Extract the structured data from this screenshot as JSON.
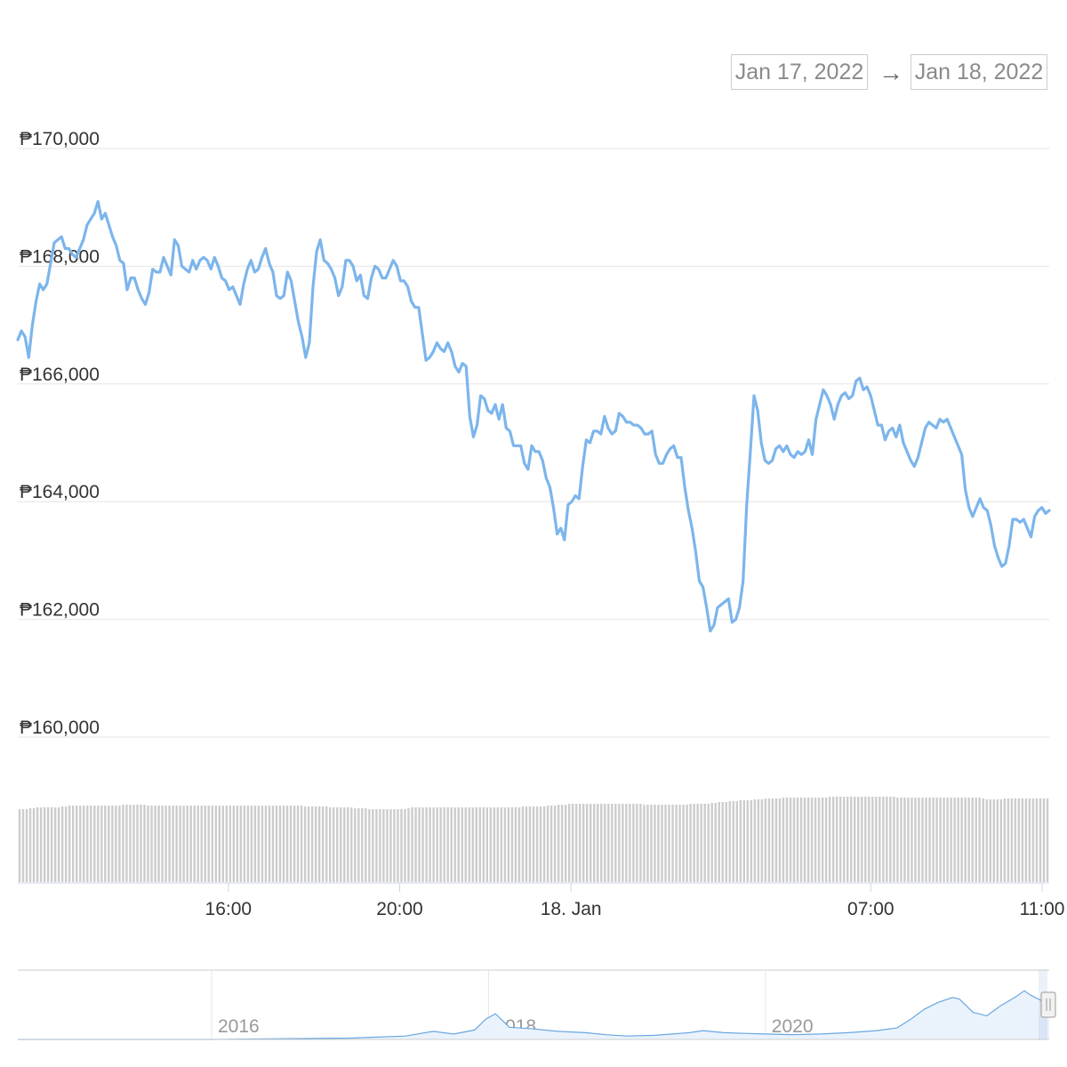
{
  "range_selector": {
    "from": "Jan 17, 2022",
    "arrow": "→",
    "to": "Jan 18, 2022"
  },
  "colors": {
    "price_line": "#7cb5ec",
    "grid": "#e6e6e6",
    "volume_bar": "#cccccc",
    "axis_label": "#333333",
    "navigator_line": "#6aa6e0",
    "navigator_fill": "#eaf3fc"
  },
  "chart_data": [
    {
      "type": "line",
      "name": "price",
      "title": "",
      "currency_symbol": "₱",
      "y_ticks": [
        "₱170,000",
        "₱168,000",
        "₱166,000",
        "₱164,000",
        "₱162,000",
        "₱160,000"
      ],
      "ylim": [
        160000,
        170000
      ],
      "x_ticks": [
        "16:00",
        "20:00",
        "18. Jan",
        "07:00",
        "11:00"
      ],
      "grid": true,
      "x_time_range": [
        "2022-01-17 11:05",
        "2022-01-18 11:10"
      ],
      "series": [
        {
          "values": [
            166750,
            166900,
            166800,
            166450,
            167000,
            167400,
            167700,
            167600,
            167700,
            168050,
            168400,
            168450,
            168500,
            168300,
            168300,
            168200,
            168150,
            168300,
            168450,
            168700,
            168800,
            168900,
            169100,
            168800,
            168900,
            168700,
            168500,
            168350,
            168100,
            168050,
            167600,
            167800,
            167800,
            167600,
            167450,
            167350,
            167550,
            167950,
            167900,
            167900,
            168150,
            168000,
            167850,
            168450,
            168350,
            168000,
            167950,
            167900,
            168100,
            167950,
            168100,
            168150,
            168100,
            167950,
            168150,
            168000,
            167800,
            167750,
            167600,
            167650,
            167500,
            167350,
            167700,
            167950,
            168100,
            167900,
            167950,
            168150,
            168300,
            168050,
            167900,
            167500,
            167450,
            167500,
            167900,
            167750,
            167400,
            167050,
            166800,
            166450,
            166700,
            167650,
            168250,
            168450,
            168100,
            168050,
            167950,
            167800,
            167500,
            167650,
            168100,
            168100,
            168000,
            167750,
            167850,
            167500,
            167450,
            167800,
            168000,
            167950,
            167800,
            167800,
            167950,
            168100,
            168000,
            167750,
            167750,
            167650,
            167400,
            167300,
            167300,
            166850,
            166400,
            166450,
            166550,
            166700,
            166600,
            166550,
            166700,
            166550,
            166300,
            166200,
            166350,
            166300,
            165450,
            165100,
            165300,
            165800,
            165750,
            165550,
            165500,
            165650,
            165400,
            165650,
            165250,
            165200,
            164950,
            164950,
            164950,
            164650,
            164550,
            164950,
            164850,
            164850,
            164700,
            164400,
            164250,
            163900,
            163450,
            163550,
            163350,
            163950,
            164000,
            164100,
            164050,
            164600,
            165050,
            165000,
            165200,
            165200,
            165150,
            165450,
            165250,
            165150,
            165200,
            165500,
            165450,
            165350,
            165350,
            165300,
            165300,
            165250,
            165150,
            165150,
            165200,
            164800,
            164650,
            164650,
            164800,
            164900,
            164950,
            164750,
            164750,
            164250,
            163850,
            163550,
            163150,
            162650,
            162550,
            162200,
            161800,
            161900,
            162200,
            162250,
            162300,
            162350,
            161950,
            162000,
            162200,
            162650,
            163950,
            164850,
            165800,
            165550,
            165000,
            164700,
            164650,
            164700,
            164900,
            164950,
            164850,
            164950,
            164800,
            164750,
            164850,
            164800,
            164850,
            165050,
            164800,
            165400,
            165650,
            165900,
            165800,
            165650,
            165400,
            165650,
            165800,
            165850,
            165750,
            165800,
            166050,
            166100,
            165900,
            165950,
            165800,
            165550,
            165300,
            165300,
            165050,
            165200,
            165250,
            165100,
            165300,
            165000,
            164850,
            164700,
            164600,
            164750,
            165000,
            165250,
            165350,
            165300,
            165250,
            165400,
            165350,
            165400,
            165250,
            165100,
            164950,
            164800,
            164200,
            163900,
            163750,
            163900,
            164050,
            163900,
            163850,
            163600,
            163250,
            163050,
            162900,
            162950,
            163250,
            163700,
            163700,
            163650,
            163700,
            163550,
            163400,
            163750,
            163850,
            163900,
            163800,
            163850
          ]
        }
      ]
    },
    {
      "type": "bar",
      "name": "volume",
      "description_units": "relative",
      "values_relative": [
        0.82,
        0.82,
        0.82,
        0.83,
        0.83,
        0.84,
        0.84,
        0.84,
        0.84,
        0.84,
        0.84,
        0.84,
        0.85,
        0.85,
        0.86,
        0.86,
        0.86,
        0.86,
        0.86,
        0.86,
        0.86,
        0.86,
        0.86,
        0.86,
        0.86,
        0.86,
        0.86,
        0.86,
        0.86,
        0.87,
        0.87,
        0.87,
        0.87,
        0.87,
        0.87,
        0.87,
        0.86,
        0.86,
        0.86,
        0.86,
        0.86,
        0.86,
        0.86,
        0.86,
        0.86,
        0.86,
        0.86,
        0.86,
        0.86,
        0.86,
        0.86,
        0.86,
        0.86,
        0.86,
        0.86,
        0.86,
        0.86,
        0.86,
        0.86,
        0.86,
        0.86,
        0.86,
        0.86,
        0.86,
        0.86,
        0.86,
        0.86,
        0.86,
        0.86,
        0.86,
        0.86,
        0.86,
        0.86,
        0.86,
        0.86,
        0.86,
        0.86,
        0.86,
        0.86,
        0.86,
        0.85,
        0.85,
        0.85,
        0.85,
        0.85,
        0.85,
        0.85,
        0.84,
        0.84,
        0.84,
        0.84,
        0.84,
        0.84,
        0.84,
        0.83,
        0.83,
        0.83,
        0.83,
        0.82,
        0.82,
        0.82,
        0.82,
        0.82,
        0.82,
        0.82,
        0.82,
        0.82,
        0.82,
        0.82,
        0.83,
        0.84,
        0.84,
        0.84,
        0.84,
        0.84,
        0.84,
        0.84,
        0.84,
        0.84,
        0.84,
        0.84,
        0.84,
        0.84,
        0.84,
        0.84,
        0.84,
        0.84,
        0.84,
        0.84,
        0.84,
        0.84,
        0.84,
        0.84,
        0.84,
        0.84,
        0.84,
        0.84,
        0.84,
        0.84,
        0.84,
        0.84,
        0.85,
        0.85,
        0.85,
        0.85,
        0.85,
        0.85,
        0.85,
        0.86,
        0.86,
        0.86,
        0.87,
        0.87,
        0.87,
        0.88,
        0.88,
        0.88,
        0.88,
        0.88,
        0.88,
        0.88,
        0.88,
        0.88,
        0.88,
        0.88,
        0.88,
        0.88,
        0.88,
        0.88,
        0.88,
        0.88,
        0.88,
        0.88,
        0.88,
        0.88,
        0.87,
        0.87,
        0.87,
        0.87,
        0.87,
        0.87,
        0.87,
        0.87,
        0.87,
        0.87,
        0.87,
        0.87,
        0.87,
        0.88,
        0.88,
        0.88,
        0.88,
        0.88,
        0.88,
        0.89,
        0.89,
        0.9,
        0.9,
        0.9,
        0.91,
        0.91,
        0.91,
        0.92,
        0.92,
        0.92,
        0.92,
        0.93,
        0.93,
        0.93,
        0.94,
        0.94,
        0.94,
        0.94,
        0.94,
        0.95,
        0.95,
        0.95,
        0.95,
        0.95,
        0.95,
        0.95,
        0.95,
        0.95,
        0.95,
        0.95,
        0.95,
        0.95,
        0.96,
        0.96,
        0.96,
        0.96,
        0.96,
        0.96,
        0.96,
        0.96,
        0.96,
        0.96,
        0.96,
        0.96,
        0.96,
        0.96,
        0.96,
        0.96,
        0.96,
        0.96,
        0.96,
        0.95,
        0.95,
        0.95,
        0.95,
        0.95,
        0.95,
        0.95,
        0.95,
        0.95,
        0.95,
        0.95,
        0.95,
        0.95,
        0.95,
        0.95,
        0.95,
        0.95,
        0.95,
        0.95,
        0.95,
        0.95,
        0.95,
        0.95,
        0.95,
        0.94,
        0.93,
        0.93,
        0.93,
        0.93,
        0.93,
        0.94,
        0.94,
        0.94,
        0.94,
        0.94,
        0.94,
        0.94,
        0.94,
        0.94,
        0.94,
        0.94,
        0.94,
        0.94
      ]
    },
    {
      "type": "area",
      "name": "navigator",
      "x_ticks": [
        "2016",
        "2018",
        "2020"
      ],
      "x_range_years": [
        2014.6,
        2022.05
      ],
      "ylim_relative": [
        0,
        1
      ],
      "series": [
        {
          "points_relative": [
            [
              2014.6,
              0.0
            ],
            [
              2015.0,
              0.0
            ],
            [
              2015.5,
              0.0
            ],
            [
              2016.0,
              0.0
            ],
            [
              2016.5,
              0.01
            ],
            [
              2017.0,
              0.02
            ],
            [
              2017.4,
              0.05
            ],
            [
              2017.6,
              0.12
            ],
            [
              2017.75,
              0.08
            ],
            [
              2017.9,
              0.14
            ],
            [
              2017.98,
              0.3
            ],
            [
              2018.05,
              0.38
            ],
            [
              2018.15,
              0.18
            ],
            [
              2018.3,
              0.16
            ],
            [
              2018.5,
              0.12
            ],
            [
              2018.7,
              0.1
            ],
            [
              2018.85,
              0.07
            ],
            [
              2019.0,
              0.05
            ],
            [
              2019.2,
              0.06
            ],
            [
              2019.45,
              0.1
            ],
            [
              2019.55,
              0.13
            ],
            [
              2019.7,
              0.1
            ],
            [
              2019.85,
              0.09
            ],
            [
              2020.0,
              0.08
            ],
            [
              2020.2,
              0.07
            ],
            [
              2020.4,
              0.08
            ],
            [
              2020.6,
              0.1
            ],
            [
              2020.8,
              0.13
            ],
            [
              2020.95,
              0.17
            ],
            [
              2021.05,
              0.3
            ],
            [
              2021.15,
              0.45
            ],
            [
              2021.25,
              0.55
            ],
            [
              2021.35,
              0.62
            ],
            [
              2021.4,
              0.6
            ],
            [
              2021.5,
              0.4
            ],
            [
              2021.6,
              0.35
            ],
            [
              2021.7,
              0.5
            ],
            [
              2021.8,
              0.62
            ],
            [
              2021.87,
              0.72
            ],
            [
              2021.92,
              0.65
            ],
            [
              2021.97,
              0.6
            ],
            [
              2022.02,
              0.55
            ],
            [
              2022.05,
              0.55
            ]
          ]
        }
      ]
    }
  ]
}
